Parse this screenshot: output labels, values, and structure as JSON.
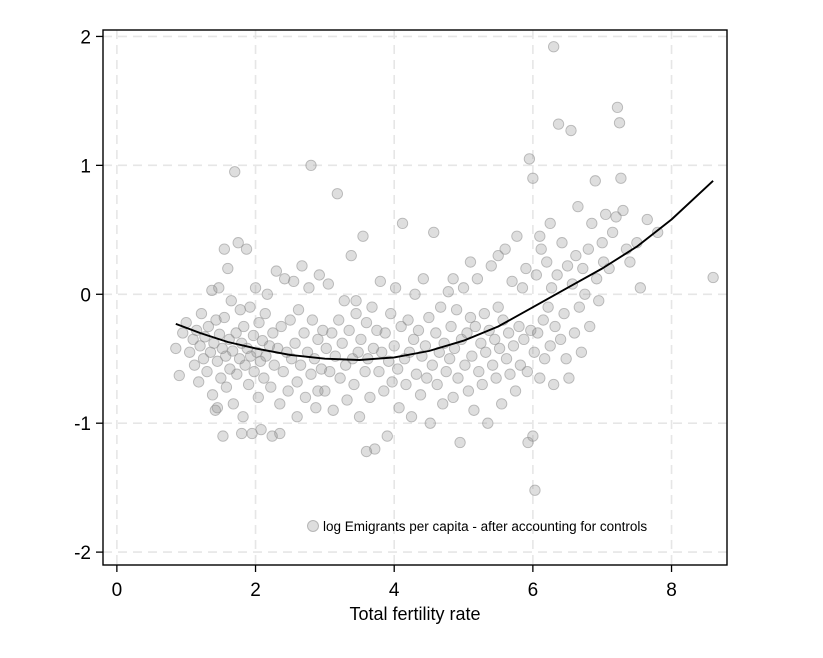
{
  "chart_data": {
    "type": "scatter",
    "title": "",
    "xlabel": "Total fertility rate",
    "ylabel": "",
    "xlim": [
      -0.2,
      8.8
    ],
    "ylim": [
      -2.1,
      2.05
    ],
    "x_ticks": [
      0,
      2,
      4,
      6,
      8
    ],
    "x_tick_labels": [
      "0",
      "2",
      "4",
      "6",
      "8"
    ],
    "y_ticks": [
      -2,
      -1,
      0,
      1,
      2
    ],
    "y_tick_labels": [
      "-2",
      "-1",
      "0",
      "1",
      "2"
    ],
    "grid": true,
    "legend": {
      "position": "bottom-right",
      "entries": [
        "log Emigrants per capita - after accounting for controls"
      ]
    },
    "colors": {
      "points": "#8a8a8a",
      "fit_line": "#000000",
      "grid": "#e6e6e6"
    },
    "series": [
      {
        "name": "log Emigrants per capita - after accounting for controls",
        "kind": "scatter",
        "points": [
          [
            0.85,
            -0.42
          ],
          [
            0.9,
            -0.63
          ],
          [
            0.95,
            -0.3
          ],
          [
            1.0,
            -0.22
          ],
          [
            1.05,
            -0.45
          ],
          [
            1.1,
            -0.35
          ],
          [
            1.12,
            -0.55
          ],
          [
            1.15,
            -0.28
          ],
          [
            1.18,
            -0.68
          ],
          [
            1.2,
            -0.4
          ],
          [
            1.22,
            -0.15
          ],
          [
            1.25,
            -0.5
          ],
          [
            1.27,
            -0.33
          ],
          [
            1.3,
            -0.6
          ],
          [
            1.32,
            -0.25
          ],
          [
            1.35,
            -0.45
          ],
          [
            1.37,
            0.03
          ],
          [
            1.38,
            -0.78
          ],
          [
            1.4,
            -0.38
          ],
          [
            1.42,
            -0.9
          ],
          [
            1.43,
            -0.2
          ],
          [
            1.45,
            -0.52
          ],
          [
            1.47,
            0.05
          ],
          [
            1.48,
            -0.31
          ],
          [
            1.5,
            -0.65
          ],
          [
            1.52,
            -0.42
          ],
          [
            1.53,
            -1.1
          ],
          [
            1.55,
            -0.18
          ],
          [
            1.57,
            -0.48
          ],
          [
            1.58,
            -0.72
          ],
          [
            1.6,
            0.2
          ],
          [
            1.62,
            -0.35
          ],
          [
            1.63,
            -0.58
          ],
          [
            1.65,
            -0.05
          ],
          [
            1.67,
            -0.44
          ],
          [
            1.68,
            -0.85
          ],
          [
            1.7,
            0.95
          ],
          [
            1.72,
            -0.3
          ],
          [
            1.73,
            -0.62
          ],
          [
            1.75,
            0.4
          ],
          [
            1.77,
            -0.5
          ],
          [
            1.78,
            -0.12
          ],
          [
            1.8,
            -0.38
          ],
          [
            1.82,
            -0.95
          ],
          [
            1.83,
            -0.25
          ],
          [
            1.85,
            -0.55
          ],
          [
            1.87,
            0.35
          ],
          [
            1.88,
            -0.42
          ],
          [
            1.9,
            -0.7
          ],
          [
            1.92,
            -0.1
          ],
          [
            1.93,
            -0.48
          ],
          [
            1.95,
            -1.08
          ],
          [
            1.97,
            -0.32
          ],
          [
            1.98,
            -0.6
          ],
          [
            2.0,
            0.05
          ],
          [
            2.02,
            -0.45
          ],
          [
            2.04,
            -0.8
          ],
          [
            2.05,
            -0.22
          ],
          [
            2.07,
            -0.52
          ],
          [
            2.08,
            -1.05
          ],
          [
            2.1,
            -0.36
          ],
          [
            2.12,
            -0.65
          ],
          [
            2.14,
            -0.15
          ],
          [
            2.15,
            -0.48
          ],
          [
            2.17,
            0.0
          ],
          [
            2.2,
            -0.4
          ],
          [
            2.22,
            -0.72
          ],
          [
            2.24,
            -1.1
          ],
          [
            2.25,
            -0.3
          ],
          [
            2.27,
            -0.55
          ],
          [
            2.3,
            0.18
          ],
          [
            2.32,
            -0.42
          ],
          [
            2.35,
            -0.85
          ],
          [
            2.37,
            -0.25
          ],
          [
            2.4,
            -0.6
          ],
          [
            2.42,
            0.12
          ],
          [
            2.45,
            -0.45
          ],
          [
            2.47,
            -0.75
          ],
          [
            2.5,
            -0.2
          ],
          [
            2.52,
            -0.5
          ],
          [
            2.55,
            0.1
          ],
          [
            2.57,
            -0.38
          ],
          [
            2.6,
            -0.68
          ],
          [
            2.62,
            -0.12
          ],
          [
            2.65,
            -0.55
          ],
          [
            2.67,
            0.22
          ],
          [
            2.7,
            -0.3
          ],
          [
            2.72,
            -0.8
          ],
          [
            2.75,
            -0.45
          ],
          [
            2.77,
            0.05
          ],
          [
            2.8,
            1.0
          ],
          [
            2.8,
            -0.62
          ],
          [
            2.82,
            -0.2
          ],
          [
            2.85,
            -0.5
          ],
          [
            2.87,
            -0.88
          ],
          [
            2.9,
            -0.35
          ],
          [
            2.92,
            0.15
          ],
          [
            2.95,
            -0.58
          ],
          [
            2.97,
            -0.28
          ],
          [
            3.0,
            -0.75
          ],
          [
            3.02,
            -0.42
          ],
          [
            3.05,
            0.08
          ],
          [
            3.07,
            -0.6
          ],
          [
            3.1,
            -0.3
          ],
          [
            3.12,
            -0.9
          ],
          [
            3.15,
            -0.48
          ],
          [
            3.18,
            0.78
          ],
          [
            3.2,
            -0.2
          ],
          [
            3.22,
            -0.65
          ],
          [
            3.25,
            -0.38
          ],
          [
            3.28,
            -0.05
          ],
          [
            3.3,
            -0.55
          ],
          [
            3.32,
            -0.82
          ],
          [
            3.35,
            -0.28
          ],
          [
            3.38,
            0.3
          ],
          [
            3.4,
            -0.5
          ],
          [
            3.42,
            -0.7
          ],
          [
            3.45,
            -0.15
          ],
          [
            3.48,
            -0.45
          ],
          [
            3.5,
            -0.95
          ],
          [
            3.52,
            -0.35
          ],
          [
            3.55,
            0.45
          ],
          [
            3.58,
            -0.6
          ],
          [
            3.6,
            -0.22
          ],
          [
            3.62,
            -0.5
          ],
          [
            3.65,
            -0.8
          ],
          [
            3.68,
            -0.1
          ],
          [
            3.7,
            -0.42
          ],
          [
            3.72,
            -1.2
          ],
          [
            3.75,
            -0.28
          ],
          [
            3.78,
            -0.6
          ],
          [
            3.8,
            0.1
          ],
          [
            3.82,
            -0.45
          ],
          [
            3.85,
            -0.75
          ],
          [
            3.87,
            -0.3
          ],
          [
            3.9,
            -1.1
          ],
          [
            3.92,
            -0.52
          ],
          [
            3.95,
            -0.15
          ],
          [
            3.97,
            -0.68
          ],
          [
            4.0,
            -0.4
          ],
          [
            4.02,
            0.05
          ],
          [
            4.05,
            -0.58
          ],
          [
            4.07,
            -0.88
          ],
          [
            4.1,
            -0.25
          ],
          [
            4.12,
            0.55
          ],
          [
            4.15,
            -0.5
          ],
          [
            4.17,
            -0.7
          ],
          [
            4.2,
            -0.2
          ],
          [
            4.22,
            -0.45
          ],
          [
            4.25,
            -0.95
          ],
          [
            4.28,
            -0.35
          ],
          [
            4.3,
            0.0
          ],
          [
            4.32,
            -0.62
          ],
          [
            4.35,
            -0.28
          ],
          [
            4.38,
            -0.78
          ],
          [
            4.4,
            -0.48
          ],
          [
            4.42,
            0.12
          ],
          [
            4.45,
            -0.4
          ],
          [
            4.47,
            -0.65
          ],
          [
            4.5,
            -0.18
          ],
          [
            4.52,
            -1.0
          ],
          [
            4.55,
            -0.55
          ],
          [
            4.57,
            0.48
          ],
          [
            4.6,
            -0.3
          ],
          [
            4.62,
            -0.7
          ],
          [
            4.65,
            -0.45
          ],
          [
            4.67,
            -0.1
          ],
          [
            4.7,
            -0.85
          ],
          [
            4.72,
            -0.38
          ],
          [
            4.75,
            -0.6
          ],
          [
            4.78,
            0.02
          ],
          [
            4.8,
            -0.5
          ],
          [
            4.82,
            -0.25
          ],
          [
            4.85,
            -0.8
          ],
          [
            4.87,
            -0.42
          ],
          [
            4.9,
            -0.12
          ],
          [
            4.92,
            -0.65
          ],
          [
            4.95,
            -1.15
          ],
          [
            4.97,
            -0.35
          ],
          [
            5.0,
            0.05
          ],
          [
            5.02,
            -0.55
          ],
          [
            5.05,
            -0.3
          ],
          [
            5.07,
            -0.75
          ],
          [
            5.1,
            -0.18
          ],
          [
            5.12,
            -0.48
          ],
          [
            5.15,
            -0.9
          ],
          [
            5.17,
            -0.25
          ],
          [
            5.2,
            0.12
          ],
          [
            5.22,
            -0.6
          ],
          [
            5.25,
            -0.38
          ],
          [
            5.27,
            -0.7
          ],
          [
            5.3,
            -0.15
          ],
          [
            5.32,
            -0.45
          ],
          [
            5.35,
            -1.0
          ],
          [
            5.37,
            -0.28
          ],
          [
            5.4,
            0.22
          ],
          [
            5.42,
            -0.55
          ],
          [
            5.45,
            -0.35
          ],
          [
            5.47,
            -0.65
          ],
          [
            5.5,
            -0.1
          ],
          [
            5.52,
            -0.42
          ],
          [
            5.55,
            -0.85
          ],
          [
            5.57,
            -0.2
          ],
          [
            5.6,
            0.35
          ],
          [
            5.62,
            -0.5
          ],
          [
            5.65,
            -0.3
          ],
          [
            5.67,
            -0.62
          ],
          [
            5.7,
            0.1
          ],
          [
            5.72,
            -0.4
          ],
          [
            5.75,
            -0.75
          ],
          [
            5.77,
            0.45
          ],
          [
            5.8,
            -0.25
          ],
          [
            5.82,
            -0.55
          ],
          [
            5.85,
            0.05
          ],
          [
            5.87,
            -0.35
          ],
          [
            5.9,
            0.2
          ],
          [
            5.92,
            -0.6
          ],
          [
            5.93,
            -1.15
          ],
          [
            5.95,
            1.05
          ],
          [
            5.97,
            -0.28
          ],
          [
            6.0,
            0.9
          ],
          [
            6.0,
            -1.1
          ],
          [
            6.02,
            -0.45
          ],
          [
            6.03,
            -1.52
          ],
          [
            6.05,
            0.15
          ],
          [
            6.07,
            -0.3
          ],
          [
            6.1,
            -0.65
          ],
          [
            6.12,
            0.35
          ],
          [
            6.15,
            -0.2
          ],
          [
            6.17,
            -0.5
          ],
          [
            6.2,
            0.25
          ],
          [
            6.22,
            -0.1
          ],
          [
            6.25,
            -0.4
          ],
          [
            6.27,
            0.05
          ],
          [
            6.3,
            -0.7
          ],
          [
            6.32,
            -0.25
          ],
          [
            6.35,
            0.15
          ],
          [
            6.37,
            1.32
          ],
          [
            6.4,
            -0.35
          ],
          [
            6.42,
            0.4
          ],
          [
            6.45,
            -0.15
          ],
          [
            6.48,
            -0.5
          ],
          [
            6.5,
            0.22
          ],
          [
            6.52,
            -0.65
          ],
          [
            6.55,
            1.27
          ],
          [
            6.57,
            0.08
          ],
          [
            6.6,
            -0.3
          ],
          [
            6.62,
            0.3
          ],
          [
            6.65,
            0.68
          ],
          [
            6.67,
            -0.1
          ],
          [
            6.7,
            -0.45
          ],
          [
            6.72,
            0.2
          ],
          [
            6.75,
            0.0
          ],
          [
            6.8,
            0.35
          ],
          [
            6.82,
            -0.25
          ],
          [
            6.85,
            0.55
          ],
          [
            6.9,
            0.88
          ],
          [
            6.92,
            0.12
          ],
          [
            6.95,
            -0.05
          ],
          [
            7.0,
            0.4
          ],
          [
            7.02,
            0.25
          ],
          [
            7.05,
            0.62
          ],
          [
            7.1,
            0.2
          ],
          [
            7.15,
            0.48
          ],
          [
            7.2,
            0.6
          ],
          [
            7.22,
            1.45
          ],
          [
            7.25,
            1.33
          ],
          [
            7.27,
            0.9
          ],
          [
            7.3,
            0.65
          ],
          [
            7.35,
            0.35
          ],
          [
            7.4,
            0.25
          ],
          [
            7.5,
            0.4
          ],
          [
            7.55,
            0.05
          ],
          [
            7.65,
            0.58
          ],
          [
            7.8,
            0.48
          ],
          [
            8.6,
            0.13
          ],
          [
            6.3,
            1.92
          ],
          [
            1.55,
            0.35
          ],
          [
            1.45,
            -0.88
          ],
          [
            2.35,
            -1.08
          ],
          [
            2.6,
            -0.95
          ],
          [
            3.6,
            -1.22
          ],
          [
            3.45,
            -0.05
          ],
          [
            2.9,
            -0.75
          ],
          [
            1.8,
            -1.08
          ],
          [
            4.85,
            0.12
          ],
          [
            5.1,
            0.25
          ],
          [
            5.5,
            0.3
          ],
          [
            6.25,
            0.55
          ],
          [
            6.1,
            0.45
          ]
        ]
      },
      {
        "name": "",
        "kind": "line",
        "fit": "quadratic",
        "x": [
          0.85,
          1.2,
          1.6,
          2.0,
          2.5,
          3.0,
          3.5,
          4.0,
          4.5,
          5.0,
          5.5,
          6.0,
          6.5,
          7.0,
          7.5,
          8.0,
          8.6
        ],
        "y": [
          -0.23,
          -0.3,
          -0.37,
          -0.42,
          -0.47,
          -0.5,
          -0.51,
          -0.49,
          -0.44,
          -0.36,
          -0.25,
          -0.1,
          0.05,
          0.2,
          0.37,
          0.58,
          0.88
        ]
      }
    ]
  }
}
